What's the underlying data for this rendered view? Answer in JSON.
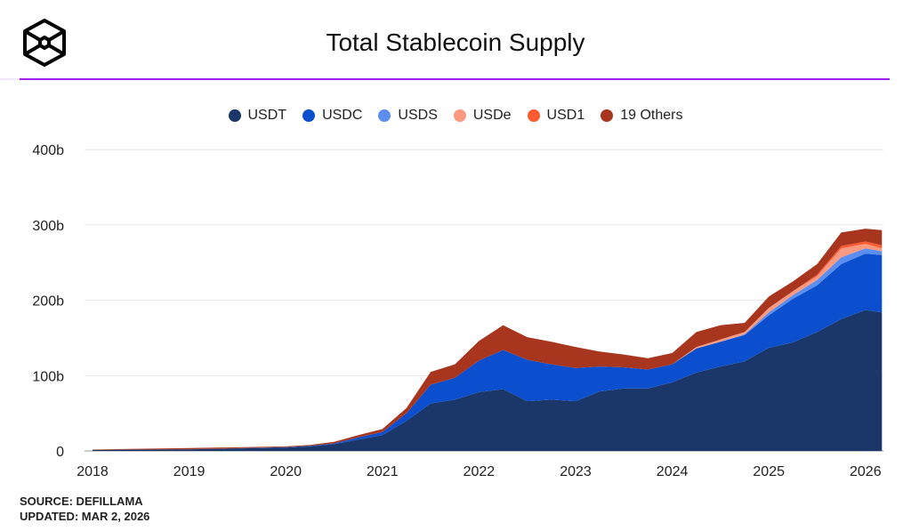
{
  "title": "Total Stablecoin Supply",
  "source": "SOURCE: DEFILLAMA",
  "updated": "UPDATED: MAR 2, 2026",
  "chart_data": {
    "type": "area",
    "stacked": true,
    "title": "Total Stablecoin Supply",
    "xlabel": "",
    "ylabel": "",
    "x_range": [
      2018.0,
      2026.17
    ],
    "ylim": [
      0,
      400
    ],
    "y_ticks": [
      0,
      100,
      200,
      300,
      400
    ],
    "y_tick_labels": [
      "0",
      "100b",
      "200b",
      "300b",
      "400b"
    ],
    "x_ticks": [
      2018,
      2019,
      2020,
      2021,
      2022,
      2023,
      2024,
      2025,
      2026
    ],
    "x_tick_labels": [
      "2018",
      "2019",
      "2020",
      "2021",
      "2022",
      "2023",
      "2024",
      "2025",
      "2026"
    ],
    "grid": "horizontal",
    "legend": "top-center",
    "x": [
      2018.0,
      2019.0,
      2020.0,
      2020.25,
      2020.5,
      2020.75,
      2021.0,
      2021.25,
      2021.5,
      2021.75,
      2022.0,
      2022.25,
      2022.5,
      2022.75,
      2023.0,
      2023.25,
      2023.5,
      2023.75,
      2024.0,
      2024.25,
      2024.5,
      2024.75,
      2025.0,
      2025.25,
      2025.5,
      2025.75,
      2026.0,
      2026.17
    ],
    "series": [
      {
        "name": "USDT",
        "color": "#1b3668",
        "values": [
          1.4,
          2,
          4.5,
          6,
          9,
          15,
          21,
          40,
          63,
          68,
          78,
          82,
          66,
          68,
          66,
          79,
          83,
          83,
          91,
          104,
          112,
          119,
          137,
          144,
          158,
          175,
          187,
          184
        ]
      },
      {
        "name": "USDC",
        "color": "#0b4fcf",
        "values": [
          0,
          0.3,
          0.5,
          0.7,
          1,
          3,
          4,
          10,
          25,
          29,
          42,
          52,
          55,
          47,
          44,
          33,
          28,
          25,
          24,
          32,
          33,
          35,
          43,
          58,
          62,
          73,
          75,
          76
        ]
      },
      {
        "name": "USDS",
        "color": "#5b8ef0",
        "values": [
          0,
          0,
          0,
          0,
          0,
          0,
          0,
          0,
          0,
          0,
          0,
          0,
          0,
          0,
          0,
          0,
          0,
          0,
          0,
          0,
          0,
          1,
          4,
          5,
          7,
          9,
          7,
          5
        ]
      },
      {
        "name": "USDe",
        "color": "#fb9a80",
        "values": [
          0,
          0,
          0,
          0,
          0,
          0,
          0,
          0,
          0,
          0,
          0,
          0,
          0,
          0,
          0,
          0,
          0,
          0,
          0,
          2,
          3,
          3,
          6,
          5,
          5,
          12,
          6,
          4
        ]
      },
      {
        "name": "USD1",
        "color": "#ff5a30",
        "values": [
          0,
          0,
          0,
          0,
          0,
          0,
          0,
          0,
          0,
          0,
          0,
          0,
          0,
          0,
          0,
          0,
          0,
          0,
          0,
          0,
          0,
          0,
          0,
          0,
          2,
          3,
          3,
          4
        ]
      },
      {
        "name": "19 Others",
        "color": "#a8361e",
        "values": [
          0.5,
          1.5,
          1,
          1.3,
          2,
          3,
          4,
          7,
          17,
          18,
          26,
          33,
          30,
          30,
          28,
          20,
          17,
          15,
          15,
          20,
          19,
          12,
          15,
          13,
          14,
          18,
          17,
          20
        ]
      }
    ]
  }
}
